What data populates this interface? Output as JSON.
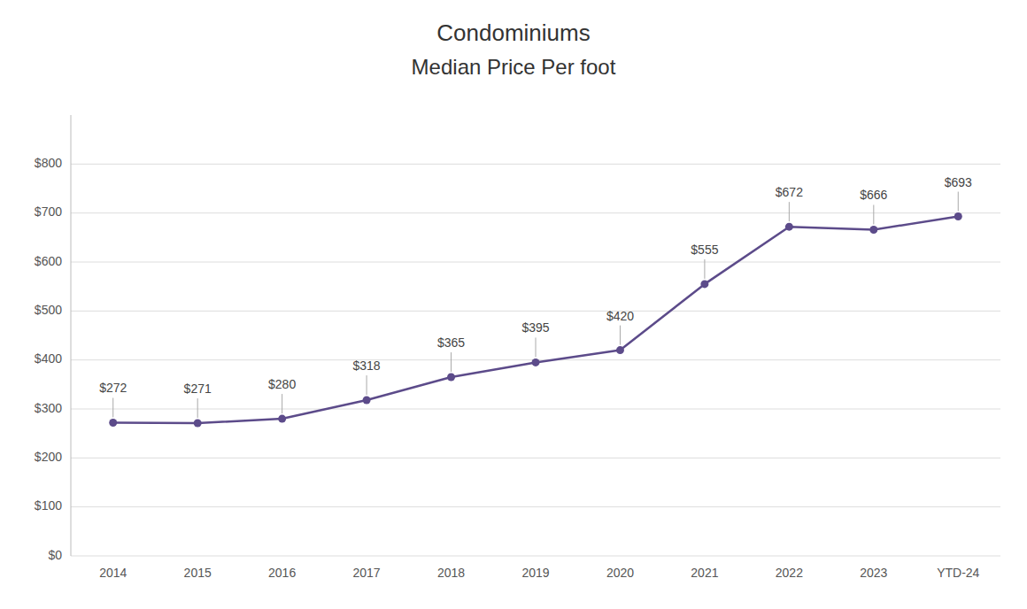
{
  "chart_data": {
    "type": "line",
    "title": "Condominiums",
    "subtitle": "Median Price Per foot",
    "categories": [
      "2014",
      "2015",
      "2016",
      "2017",
      "2018",
      "2019",
      "2020",
      "2021",
      "2022",
      "2023",
      "YTD-24"
    ],
    "values": [
      272,
      271,
      280,
      318,
      365,
      395,
      420,
      555,
      672,
      666,
      693
    ],
    "value_labels": [
      "$272",
      "$271",
      "$280",
      "$318",
      "$365",
      "$395",
      "$420",
      "$555",
      "$672",
      "$666",
      "$693"
    ],
    "data_labels": true,
    "color": "#5c4b8a",
    "marker": "circle",
    "ylim": [
      0,
      900
    ],
    "yticks": [
      {
        "value": 0,
        "label": "$0"
      },
      {
        "value": 100,
        "label": "$100"
      },
      {
        "value": 200,
        "label": "$200"
      },
      {
        "value": 300,
        "label": "$300"
      },
      {
        "value": 400,
        "label": "$400"
      },
      {
        "value": 500,
        "label": "$500"
      },
      {
        "value": 600,
        "label": "$600"
      },
      {
        "value": 700,
        "label": "$700"
      },
      {
        "value": 800,
        "label": "$800"
      }
    ],
    "grid": true
  }
}
